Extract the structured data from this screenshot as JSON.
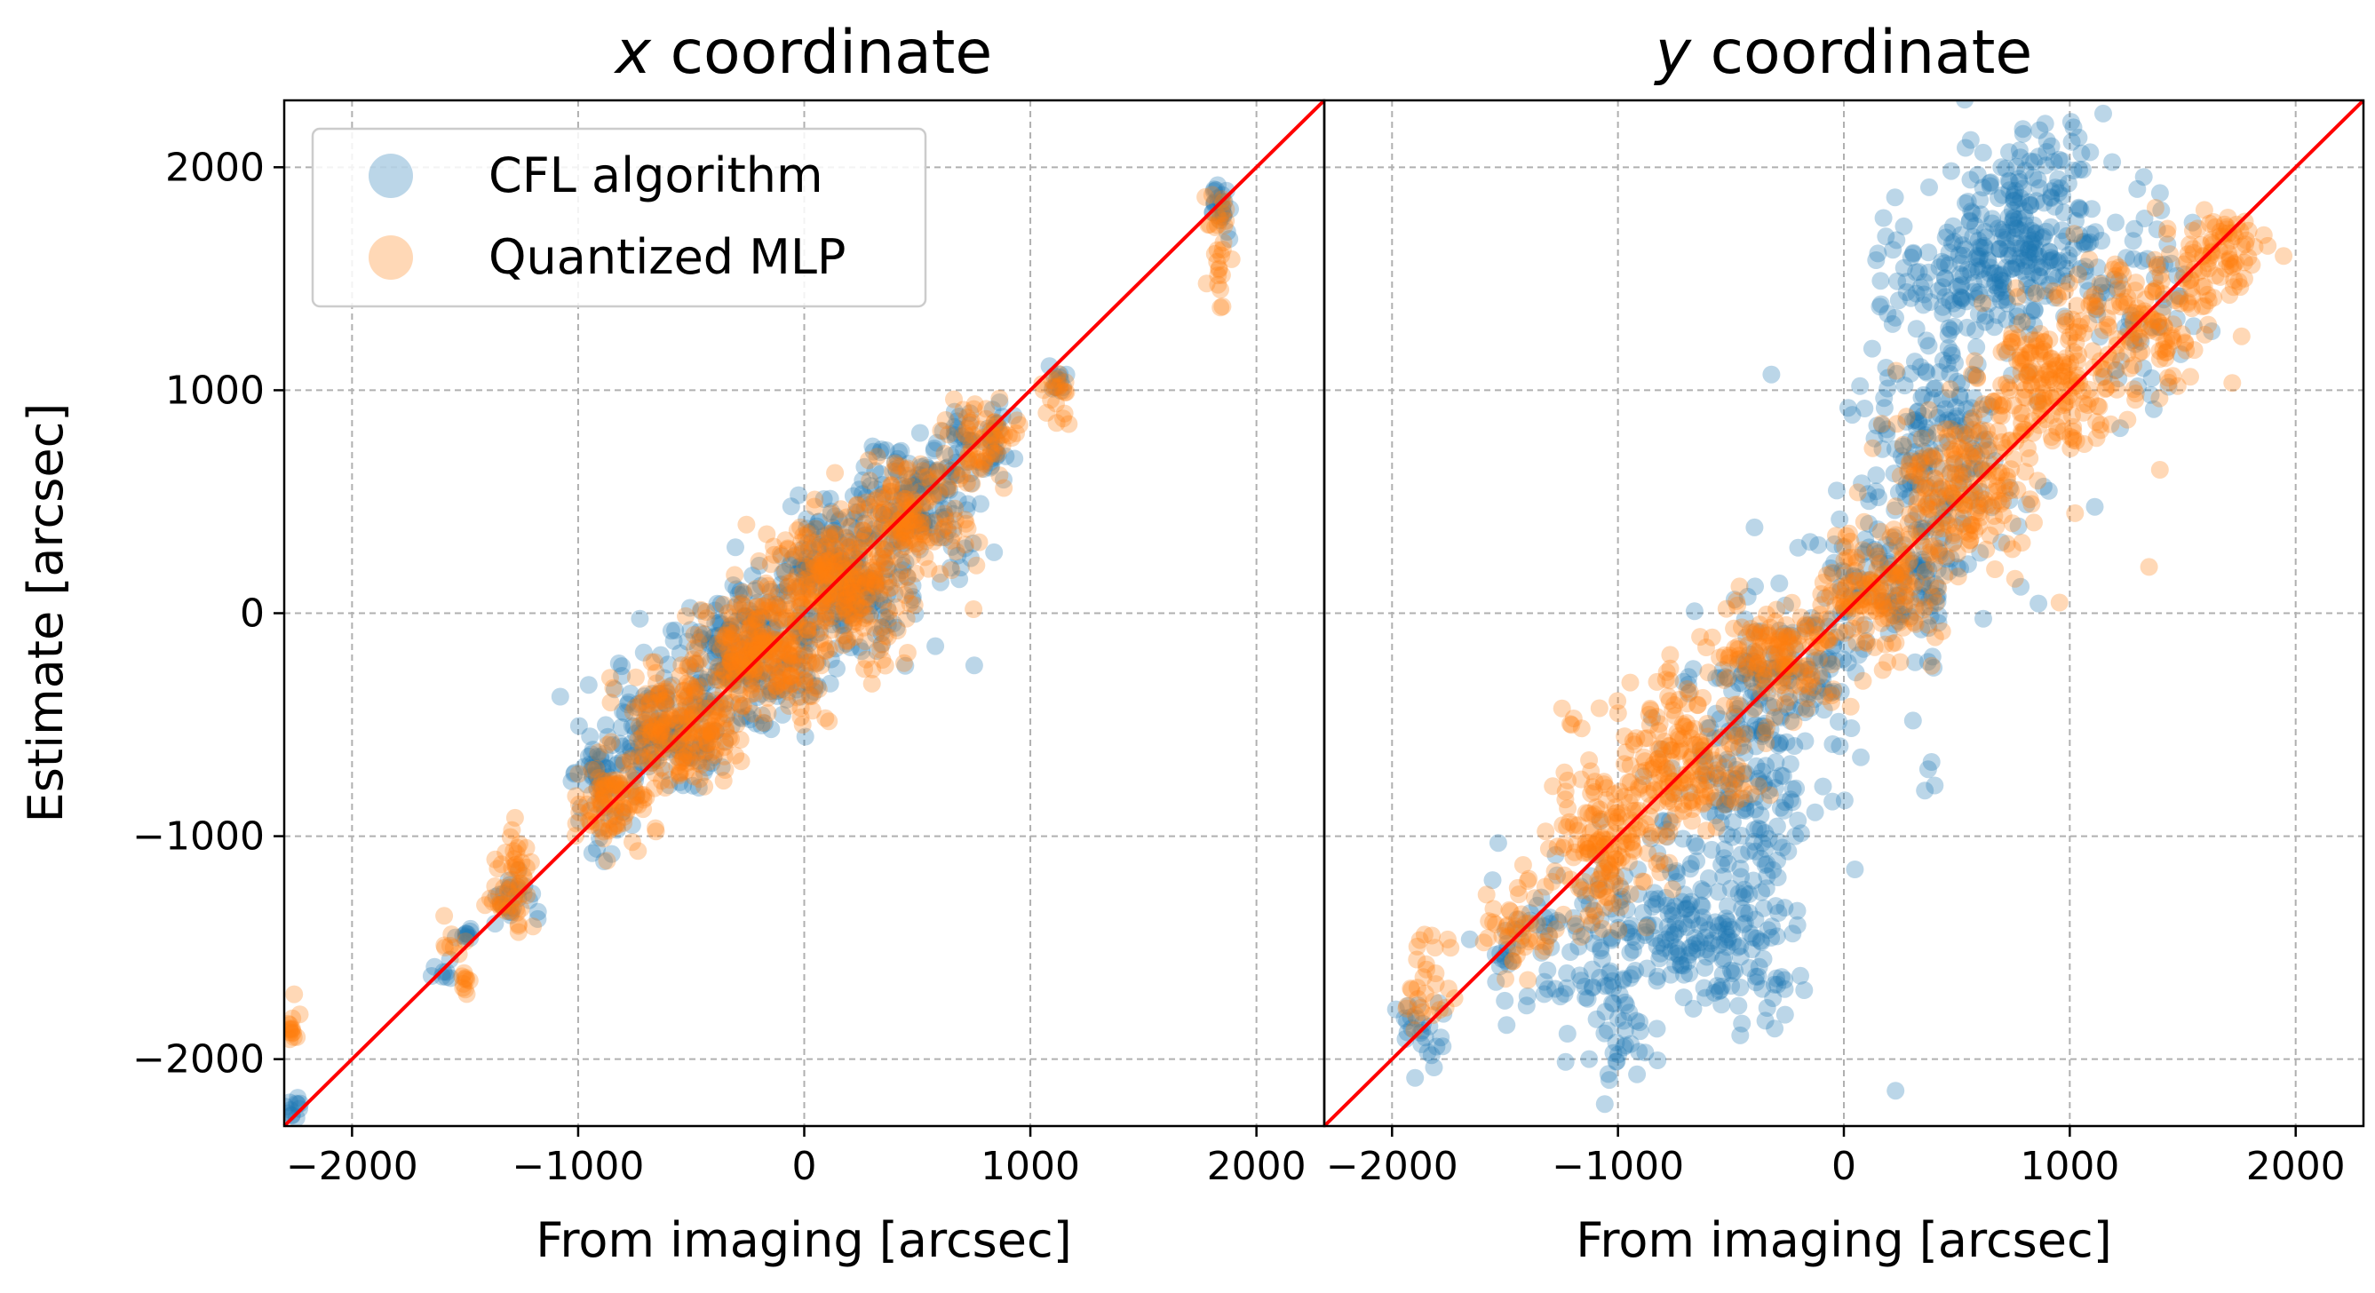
{
  "figure": {
    "shared_ylabel": "Estimate [arcsec]"
  },
  "chart_data": [
    {
      "type": "scatter",
      "title_var": "x",
      "title_rest": " coordinate",
      "xlabel": "From imaging [arcsec]",
      "ylabel": "Estimate [arcsec]",
      "xlim": [
        -2300,
        2300
      ],
      "ylim": [
        -2300,
        2300
      ],
      "xticks": [
        -2000,
        -1000,
        0,
        1000,
        2000
      ],
      "yticks": [
        -2000,
        -1000,
        0,
        1000,
        2000
      ],
      "xtick_labels": [
        "−2000",
        "−1000",
        "0",
        "1000",
        "2000"
      ],
      "ytick_labels": [
        "−2000",
        "−1000",
        "0",
        "1000",
        "2000"
      ],
      "grid": true,
      "legend_position": "top-left",
      "identity_line": {
        "from": [
          -2300,
          -2300
        ],
        "to": [
          2300,
          2300
        ],
        "color": "#ff0000"
      },
      "series": [
        {
          "name": "CFL algorithm",
          "color": "#1f77b4",
          "clusters": [
            {
              "x": -2250,
              "y": -2230,
              "sx": 20,
              "sy": 40,
              "n": 12
            },
            {
              "x": -1600,
              "y": -1600,
              "sx": 30,
              "sy": 40,
              "n": 8
            },
            {
              "x": -1500,
              "y": -1450,
              "sx": 20,
              "sy": 30,
              "n": 10
            },
            {
              "x": -1300,
              "y": -1300,
              "sx": 60,
              "sy": 60,
              "n": 25
            },
            {
              "x": -900,
              "y": -800,
              "sx": 60,
              "sy": 150,
              "n": 60
            },
            {
              "x": -600,
              "y": -550,
              "sx": 120,
              "sy": 120,
              "n": 150
            },
            {
              "x": -250,
              "y": -200,
              "sx": 150,
              "sy": 150,
              "n": 220
            },
            {
              "x": 150,
              "y": 150,
              "sx": 160,
              "sy": 160,
              "n": 240
            },
            {
              "x": 500,
              "y": 500,
              "sx": 140,
              "sy": 140,
              "n": 150
            },
            {
              "x": 800,
              "y": 780,
              "sx": 80,
              "sy": 80,
              "n": 50
            },
            {
              "x": 1120,
              "y": 1050,
              "sx": 20,
              "sy": 40,
              "n": 12
            },
            {
              "x": 1840,
              "y": 1850,
              "sx": 20,
              "sy": 60,
              "n": 25
            },
            {
              "x": 750,
              "y": -240,
              "sx": 5,
              "sy": 5,
              "n": 1
            },
            {
              "x": -820,
              "y": -230,
              "sx": 5,
              "sy": 5,
              "n": 1
            }
          ]
        },
        {
          "name": "Quantized MLP",
          "color": "#ff7f0e",
          "clusters": [
            {
              "x": -2260,
              "y": -1850,
              "sx": 15,
              "sy": 50,
              "n": 15
            },
            {
              "x": -1550,
              "y": -1450,
              "sx": 30,
              "sy": 40,
              "n": 8
            },
            {
              "x": -1500,
              "y": -1650,
              "sx": 15,
              "sy": 40,
              "n": 10
            },
            {
              "x": -1270,
              "y": -1150,
              "sx": 40,
              "sy": 130,
              "n": 40
            },
            {
              "x": -1350,
              "y": -1300,
              "sx": 40,
              "sy": 40,
              "n": 15
            },
            {
              "x": -850,
              "y": -850,
              "sx": 80,
              "sy": 100,
              "n": 90
            },
            {
              "x": -550,
              "y": -500,
              "sx": 130,
              "sy": 130,
              "n": 200
            },
            {
              "x": -200,
              "y": -180,
              "sx": 150,
              "sy": 150,
              "n": 250
            },
            {
              "x": 150,
              "y": 130,
              "sx": 150,
              "sy": 150,
              "n": 260
            },
            {
              "x": 450,
              "y": 430,
              "sx": 130,
              "sy": 130,
              "n": 160
            },
            {
              "x": 800,
              "y": 780,
              "sx": 80,
              "sy": 80,
              "n": 60
            },
            {
              "x": 1120,
              "y": 1000,
              "sx": 30,
              "sy": 80,
              "n": 20
            },
            {
              "x": 1830,
              "y": 1650,
              "sx": 30,
              "sy": 150,
              "n": 30
            },
            {
              "x": 750,
              "y": 20,
              "sx": 5,
              "sy": 5,
              "n": 1
            }
          ]
        }
      ]
    },
    {
      "type": "scatter",
      "title_var": "y",
      "title_rest": " coordinate",
      "xlabel": "From imaging [arcsec]",
      "xlim": [
        -2300,
        2300
      ],
      "ylim": [
        -2300,
        2300
      ],
      "xticks": [
        -2000,
        -1000,
        0,
        1000,
        2000
      ],
      "xtick_labels": [
        "−2000",
        "−1000",
        "0",
        "1000",
        "2000"
      ],
      "grid": true,
      "identity_line": {
        "from": [
          -2300,
          -2300
        ],
        "to": [
          2300,
          2300
        ],
        "color": "#ff0000"
      },
      "series": [
        {
          "name": "CFL algorithm",
          "color": "#1f77b4",
          "clusters": [
            {
              "x": -1850,
              "y": -1880,
              "sx": 60,
              "sy": 80,
              "n": 25
            },
            {
              "x": -1500,
              "y": -1550,
              "sx": 40,
              "sy": 60,
              "n": 12
            },
            {
              "x": -1200,
              "y": -1500,
              "sx": 180,
              "sy": 200,
              "n": 80
            },
            {
              "x": -1000,
              "y": -1850,
              "sx": 80,
              "sy": 150,
              "n": 40
            },
            {
              "x": -700,
              "y": -1400,
              "sx": 200,
              "sy": 150,
              "n": 140
            },
            {
              "x": -400,
              "y": -1550,
              "sx": 120,
              "sy": 150,
              "n": 60
            },
            {
              "x": -450,
              "y": -750,
              "sx": 180,
              "sy": 300,
              "n": 200
            },
            {
              "x": -200,
              "y": -200,
              "sx": 150,
              "sy": 150,
              "n": 100
            },
            {
              "x": 200,
              "y": 150,
              "sx": 150,
              "sy": 150,
              "n": 100
            },
            {
              "x": 400,
              "y": 700,
              "sx": 180,
              "sy": 350,
              "n": 220
            },
            {
              "x": 600,
              "y": 1500,
              "sx": 200,
              "sy": 150,
              "n": 160
            },
            {
              "x": 900,
              "y": 1700,
              "sx": 180,
              "sy": 200,
              "n": 120
            },
            {
              "x": 800,
              "y": 2000,
              "sx": 150,
              "sy": 150,
              "n": 50
            },
            {
              "x": 1300,
              "y": 1500,
              "sx": 150,
              "sy": 300,
              "n": 60
            },
            {
              "x": 360,
              "y": -700,
              "sx": 15,
              "sy": 60,
              "n": 4
            },
            {
              "x": 380,
              "y": -200,
              "sx": 15,
              "sy": 30,
              "n": 2
            },
            {
              "x": 220,
              "y": 1870,
              "sx": 10,
              "sy": 10,
              "n": 1
            },
            {
              "x": -310,
              "y": 1080,
              "sx": 10,
              "sy": 10,
              "n": 1
            },
            {
              "x": 230,
              "y": -2140,
              "sx": 10,
              "sy": 10,
              "n": 1
            }
          ]
        },
        {
          "name": "Quantized MLP",
          "color": "#ff7f0e",
          "clusters": [
            {
              "x": -1850,
              "y": -1650,
              "sx": 60,
              "sy": 130,
              "n": 30
            },
            {
              "x": -1400,
              "y": -1400,
              "sx": 100,
              "sy": 100,
              "n": 50
            },
            {
              "x": -1050,
              "y": -1050,
              "sx": 120,
              "sy": 180,
              "n": 150
            },
            {
              "x": -700,
              "y": -650,
              "sx": 150,
              "sy": 160,
              "n": 180
            },
            {
              "x": -300,
              "y": -200,
              "sx": 150,
              "sy": 130,
              "n": 150
            },
            {
              "x": 150,
              "y": 100,
              "sx": 150,
              "sy": 130,
              "n": 150
            },
            {
              "x": 500,
              "y": 550,
              "sx": 150,
              "sy": 180,
              "n": 200
            },
            {
              "x": 900,
              "y": 1050,
              "sx": 150,
              "sy": 180,
              "n": 180
            },
            {
              "x": 1300,
              "y": 1300,
              "sx": 150,
              "sy": 150,
              "n": 140
            },
            {
              "x": 1650,
              "y": 1600,
              "sx": 100,
              "sy": 100,
              "n": 80
            },
            {
              "x": -1200,
              "y": -500,
              "sx": 20,
              "sy": 30,
              "n": 4
            },
            {
              "x": 1400,
              "y": 650,
              "sx": 10,
              "sy": 10,
              "n": 1
            },
            {
              "x": 950,
              "y": 50,
              "sx": 10,
              "sy": 10,
              "n": 1
            },
            {
              "x": 1020,
              "y": 440,
              "sx": 10,
              "sy": 10,
              "n": 1
            },
            {
              "x": 1350,
              "y": 210,
              "sx": 10,
              "sy": 10,
              "n": 1
            }
          ]
        }
      ]
    }
  ]
}
